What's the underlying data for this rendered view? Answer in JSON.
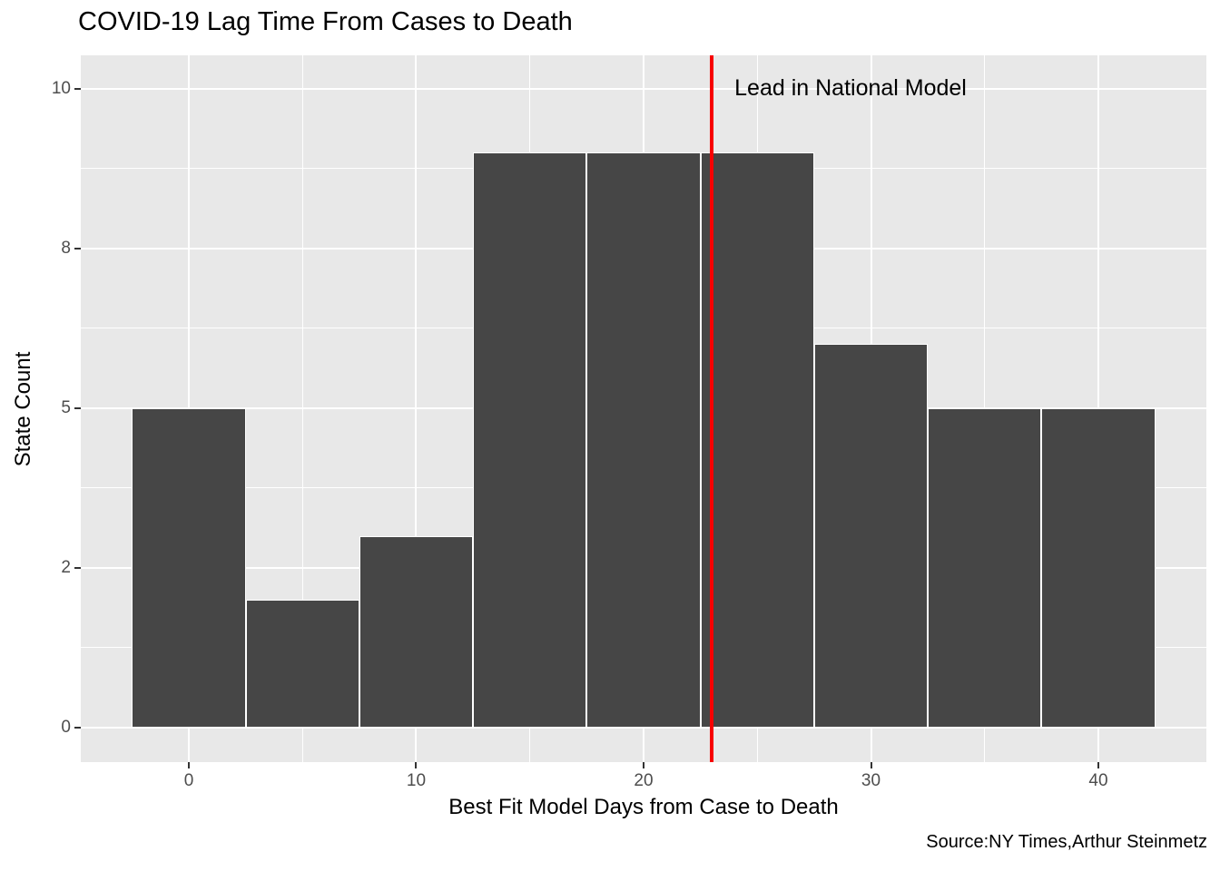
{
  "chart_data": {
    "type": "bar",
    "subtype": "histogram",
    "title": "COVID-19 Lag Time From Cases to Death",
    "xlabel": "Best Fit Model Days from Case to Death",
    "ylabel": "State Count",
    "caption": "Source:NY Times,Arthur Steinmetz",
    "bin_width": 5,
    "categories": [
      0,
      5,
      10,
      15,
      20,
      25,
      30,
      35,
      40
    ],
    "values": [
      5,
      2,
      3,
      9,
      9,
      9,
      6,
      5,
      5
    ],
    "xlim": [
      -4.75,
      44.75
    ],
    "ylim": [
      -0.54,
      10.52
    ],
    "x_ticks": [
      {
        "v": 0,
        "label": "0"
      },
      {
        "v": 10,
        "label": "10"
      },
      {
        "v": 20,
        "label": "20"
      },
      {
        "v": 30,
        "label": "30"
      },
      {
        "v": 40,
        "label": "40"
      }
    ],
    "y_ticks": [
      {
        "v": 0,
        "label": "0"
      },
      {
        "v": 2.5,
        "label": "2"
      },
      {
        "v": 5,
        "label": "5"
      },
      {
        "v": 7.5,
        "label": "8"
      },
      {
        "v": 10,
        "label": "10"
      }
    ],
    "x_minor": [
      5,
      15,
      25,
      35
    ],
    "y_minor": [
      1.25,
      3.75,
      6.25,
      8.75
    ],
    "grid": true,
    "legend_position": "none",
    "vline": {
      "x": 23,
      "label": "Lead in National Model"
    },
    "colors": {
      "bar_fill": "#464646",
      "bar_stroke": "#ffffff",
      "panel_bg": "#e8e8e8",
      "grid_major": "#ffffff",
      "grid_minor": "#ffffff",
      "vline": "#f70000",
      "tick_mark": "#333333",
      "tick_text": "#4d4d4d",
      "text": "#000000",
      "background": "#ffffff"
    }
  }
}
